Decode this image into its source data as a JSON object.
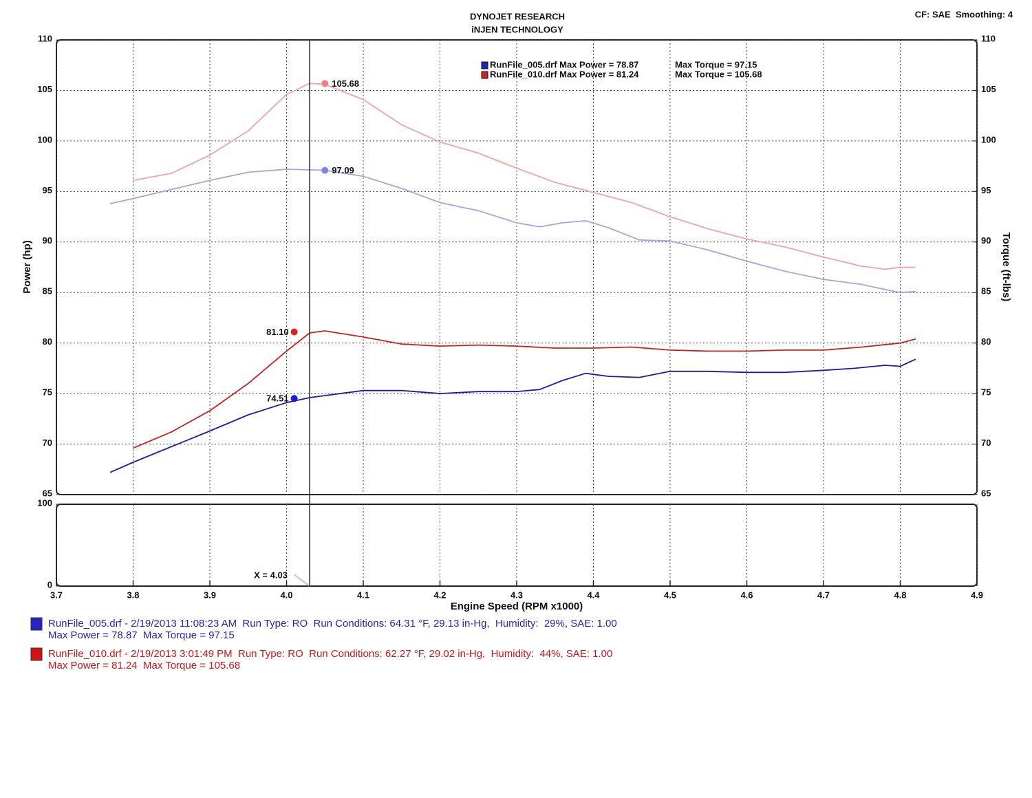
{
  "chart_data": {
    "type": "line",
    "title": "DYNOJET RESEARCH",
    "subtitle": "iNJEN TECHNOLOGY",
    "settings_text": "CF: SAE  Smoothing: 4",
    "x_label": "Engine Speed (RPM x1000)",
    "y_label": "Power (hp)",
    "y2_label": "Torque (ft-lbs)",
    "xlim": [
      3.7,
      4.9
    ],
    "xticks": [
      3.7,
      3.8,
      3.9,
      {
        "value": 4,
        "label": "4.0"
      },
      4.1,
      4.2,
      4.3,
      4.4,
      4.5,
      4.6,
      4.7,
      4.8,
      4.9
    ],
    "ylim": [
      65,
      110
    ],
    "yticks": [
      65,
      70,
      75,
      80,
      85,
      90,
      95,
      100,
      105,
      110
    ],
    "y2lim": [
      65,
      110
    ],
    "y2ticks": [
      65,
      70,
      75,
      80,
      85,
      90,
      95,
      100,
      105,
      110
    ],
    "grid": true,
    "cursor_x": 4.03,
    "series": [
      {
        "color": "#a4a4e4",
        "axis": "y2",
        "x": [
          3.77,
          3.8,
          3.9,
          3.95,
          4.0,
          4.05,
          4.1,
          4.15,
          4.2,
          4.25,
          4.3,
          4.33,
          4.36,
          4.39,
          4.42,
          4.46,
          4.5,
          4.55,
          4.6,
          4.65,
          4.7,
          4.75,
          4.78,
          4.8,
          4.82
        ],
        "values": [
          93.8,
          94.3,
          96.1,
          96.9,
          97.2,
          97.1,
          96.5,
          95.3,
          93.9,
          93.1,
          91.9,
          91.5,
          91.9,
          92.1,
          91.4,
          90.2,
          90.1,
          89.2,
          88.1,
          87.1,
          86.3,
          85.8,
          85.3,
          85.0,
          85.1
        ]
      },
      {
        "color": "#f0a4a4",
        "axis": "y2",
        "x": [
          3.8,
          3.85,
          3.9,
          3.95,
          4.0,
          4.03,
          4.05,
          4.1,
          4.15,
          4.2,
          4.25,
          4.3,
          4.35,
          4.4,
          4.45,
          4.5,
          4.55,
          4.6,
          4.65,
          4.7,
          4.75,
          4.78,
          4.8,
          4.82
        ],
        "values": [
          96.1,
          96.8,
          98.6,
          101.0,
          104.6,
          105.7,
          105.6,
          104.1,
          101.6,
          99.9,
          98.8,
          97.3,
          95.9,
          94.9,
          93.9,
          92.5,
          91.3,
          90.3,
          89.5,
          88.5,
          87.6,
          87.3,
          87.5,
          87.5
        ]
      },
      {
        "color": "#1c1ca8",
        "x": [
          3.77,
          3.8,
          3.9,
          3.95,
          4.0,
          4.03,
          4.1,
          4.15,
          4.2,
          4.25,
          4.3,
          4.33,
          4.36,
          4.39,
          4.42,
          4.46,
          4.5,
          4.55,
          4.6,
          4.65,
          4.7,
          4.74,
          4.78,
          4.8,
          4.82
        ],
        "values": [
          67.2,
          68.2,
          71.3,
          72.9,
          74.1,
          74.6,
          75.3,
          75.3,
          75.0,
          75.2,
          75.2,
          75.4,
          76.3,
          77.0,
          76.7,
          76.6,
          77.2,
          77.2,
          77.1,
          77.1,
          77.3,
          77.5,
          77.8,
          77.7,
          78.4
        ]
      },
      {
        "color": "#cc2020",
        "x": [
          3.8,
          3.85,
          3.9,
          3.95,
          4.0,
          4.03,
          4.05,
          4.1,
          4.15,
          4.2,
          4.25,
          4.3,
          4.35,
          4.4,
          4.45,
          4.5,
          4.55,
          4.6,
          4.65,
          4.7,
          4.75,
          4.8,
          4.82
        ],
        "values": [
          69.6,
          71.2,
          73.3,
          76.0,
          79.2,
          81.0,
          81.2,
          80.6,
          79.9,
          79.7,
          79.8,
          79.7,
          79.5,
          79.5,
          79.6,
          79.3,
          79.2,
          79.2,
          79.3,
          79.3,
          79.6,
          80.0,
          80.4
        ]
      }
    ],
    "annotations": [
      {
        "x": 4.05,
        "y": 105.68,
        "label": "105.68",
        "color": "#f08080",
        "side": "right"
      },
      {
        "x": 4.05,
        "y": 97.09,
        "label": "97.09",
        "color": "#8484e4",
        "side": "right"
      },
      {
        "x": 4.01,
        "y": 81.1,
        "label": "81.10",
        "color": "#e02020",
        "side": "left"
      },
      {
        "x": 4.01,
        "y": 74.51,
        "label": "74.51",
        "color": "#1a1ae0",
        "side": "left"
      }
    ],
    "legend": [
      {
        "color": "#2020c8",
        "power": "RunFile_005.drf Max Power = 78.87",
        "torque": "Max Torque = 97.15"
      },
      {
        "color": "#d02020",
        "power": "RunFile_010.drf Max Power = 81.24",
        "torque": "Max Torque = 105.68"
      }
    ],
    "lower_panel": {
      "ylim": [
        0,
        100
      ],
      "yticks": [
        0,
        100
      ],
      "x": [
        4.01,
        4.03
      ],
      "values": [
        14,
        0
      ],
      "color": "#f0a0a0",
      "annotation": "X = 4.03"
    },
    "run_info": [
      {
        "color": "#2424c0",
        "line1": "RunFile_005.drf - 2/19/2013 11:08:23 AM  Run Type: RO  Run Conditions: 64.31 °F, 29.13 in-Hg,  Humidity:  29%, SAE: 1.00",
        "line2": "Max Power = 78.87  Max Torque = 97.15"
      },
      {
        "color": "#d01414",
        "line1": "RunFile_010.drf - 2/19/2013 3:01:49 PM  Run Type: RO  Run Conditions: 62.27 °F, 29.02 in-Hg,  Humidity:  44%, SAE: 1.00",
        "line2": "Max Power = 81.24  Max Torque = 105.68"
      }
    ]
  }
}
